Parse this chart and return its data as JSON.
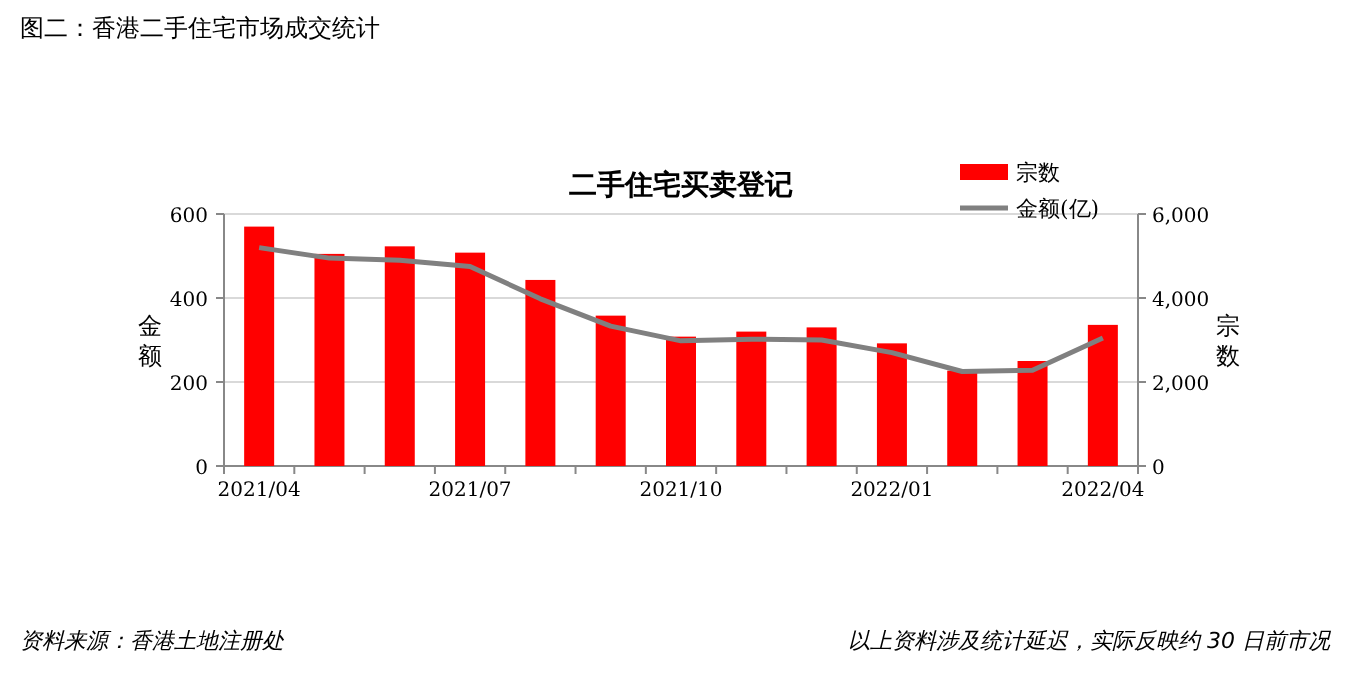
{
  "chart_data": {
    "type": "bar",
    "title": "图二：香港二手住宅市场成交统计",
    "subtitle": "二手住宅买卖登记",
    "categories": [
      "2021/04",
      null,
      null,
      "2021/07",
      null,
      null,
      "2021/10",
      null,
      null,
      "2022/01",
      null,
      null,
      "2022/04"
    ],
    "series": [
      {
        "name": "宗数",
        "color": "#ff0000",
        "values": [
          570,
          505,
          523,
          508,
          443,
          358,
          308,
          320,
          330,
          292,
          227,
          250,
          336
        ]
      },
      {
        "name": "金额(亿)",
        "type": "line",
        "axis": "y2",
        "color": "#808080",
        "values": [
          5200,
          4950,
          4900,
          4750,
          3980,
          3330,
          2980,
          3020,
          3000,
          2700,
          2250,
          2280,
          3050
        ]
      }
    ],
    "ylabel": "金额",
    "y2label": "宗数",
    "ylim": [
      0,
      600
    ],
    "yticks": [
      0,
      200,
      400,
      600
    ],
    "y2lim": [
      0,
      6000
    ],
    "y2ticks": [
      0,
      {
        "value": 2000,
        "label": "2,000"
      },
      {
        "value": 4000,
        "label": "4,000"
      },
      {
        "value": 6000,
        "label": "6,000"
      }
    ],
    "grid": "y",
    "legend": "top right",
    "annotations": [
      "资料来源：香港土地注册处",
      "以上资料涉及统计延迟，实际反映约 30 日前市况"
    ]
  }
}
